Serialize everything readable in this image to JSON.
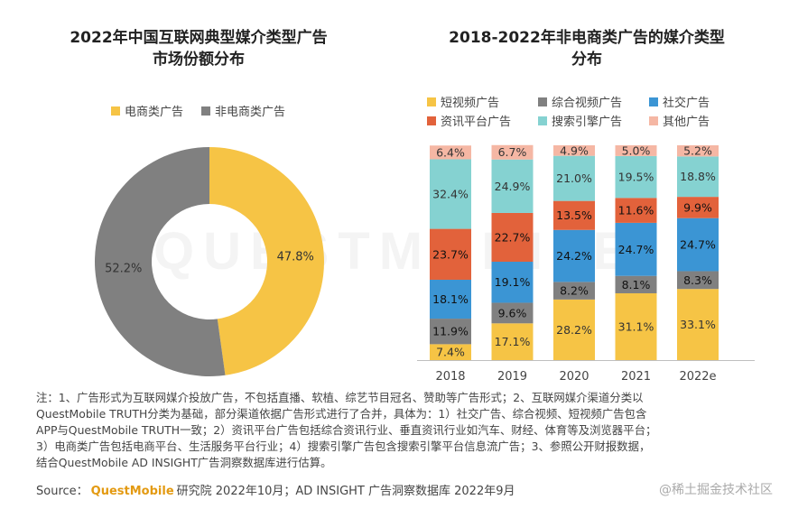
{
  "watermark_bg": "QUESTMOBILE",
  "watermark_bottom": "@稀土掘金技术社区",
  "notes": "注：1、广告形式为互联网媒介投放广告，不包括直播、软植、综艺节目冠名、赞助等广告形式；2、互联网媒介渠道分类以\nQuestMobile TRUTH分类为基础，部分渠道依据广告形式进行了合并，具体为：1）社交广告、综合视频、短视频广告包含\nAPP与QuestMobile TRUTH一致；2）资讯平台广告包括综合资讯行业、垂直资讯行业如汽车、财经、体育等及浏览器平台；\n3）电商类广告包括电商平台、生活服务平台行业；4）搜索引擎广告包含搜索引擎平台信息流广告；3、参照公开财报数据，\n结合QuestMobile AD INSIGHT广告洞察数据库进行估算。",
  "source": {
    "prefix": "Source：",
    "brand": "QuestMobile",
    "suffix": "研究院 2022年10月；AD INSIGHT 广告洞察数据库 2022年9月"
  },
  "chart_data": [
    {
      "type": "pie",
      "variant": "donut",
      "title": "2022年中国互联网典型媒介类型广告\n市场份额分布",
      "legend_position": "top",
      "labels": [
        "电商类广告",
        "非电商类广告"
      ],
      "values": [
        47.8,
        52.2
      ],
      "value_labels": [
        "47.8%",
        "52.2%"
      ],
      "colors": [
        "#f6c445",
        "#808080"
      ]
    },
    {
      "type": "bar",
      "stacked": true,
      "normalized": true,
      "title": "2018-2022年非电商类广告的媒介类型\n分布",
      "legend_position": "top",
      "categories": [
        "2018",
        "2019",
        "2020",
        "2021",
        "2022e"
      ],
      "ylim": [
        0,
        100
      ],
      "series": [
        {
          "name": "短视频广告",
          "color": "#f6c445",
          "values": [
            7.4,
            17.1,
            28.2,
            31.1,
            33.1
          ]
        },
        {
          "name": "综合视频广告",
          "color": "#808080",
          "values": [
            11.9,
            9.6,
            8.2,
            8.1,
            8.3
          ]
        },
        {
          "name": "社交广告",
          "color": "#3b95d4",
          "values": [
            18.1,
            19.1,
            24.2,
            24.7,
            24.7
          ]
        },
        {
          "name": "资讯平台广告",
          "color": "#e2623b",
          "values": [
            23.7,
            22.7,
            13.5,
            11.6,
            9.9
          ]
        },
        {
          "name": "搜索引擎广告",
          "color": "#85d2d1",
          "values": [
            32.4,
            24.9,
            21.0,
            19.5,
            18.8
          ]
        },
        {
          "name": "其他广告",
          "color": "#f5b7a4",
          "values": [
            6.4,
            6.7,
            4.9,
            5.0,
            5.2
          ]
        }
      ]
    }
  ]
}
